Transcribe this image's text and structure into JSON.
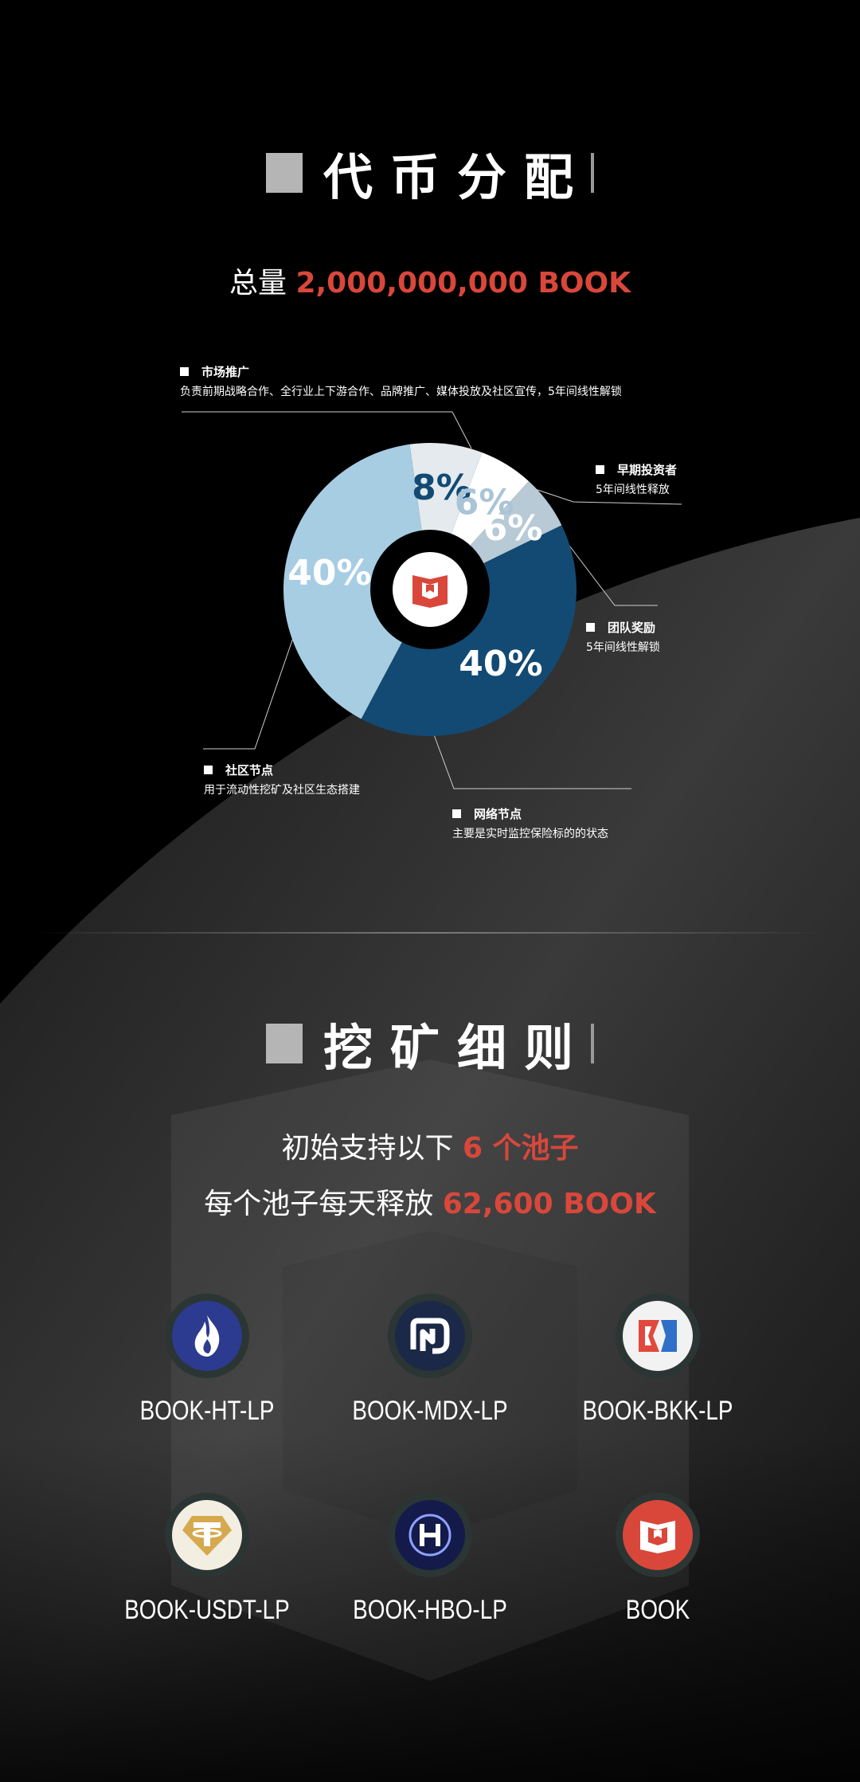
{
  "section1": {
    "title": "代币分配"
  },
  "total": {
    "prefix": "总量",
    "amount": "2,000,000,000 BOOK"
  },
  "chart_data": {
    "type": "pie",
    "slices": [
      {
        "label": "市场推广",
        "value": 8,
        "display": "8%",
        "color": "#e4eaed",
        "text_color": "#124a73"
      },
      {
        "label": "早期投资者",
        "value": 6,
        "display": "6%",
        "color": "#ffffff",
        "text_color": "#a9c4d6"
      },
      {
        "label": "团队奖励",
        "value": 6,
        "display": "6%",
        "color": "#b7cad5",
        "text_color": "#ffffff"
      },
      {
        "label": "网络节点",
        "value": 40,
        "display": "40%",
        "color": "#124a73",
        "text_color": "#ffffff"
      },
      {
        "label": "社区节点",
        "value": 40,
        "display": "40%",
        "color": "#a7cde3",
        "text_color": "#ffffff"
      }
    ]
  },
  "legend": {
    "market": {
      "title": "市场推广",
      "desc": "负责前期战略合作、全行业上下游合作、品牌推广、媒体投放及社区宣传，5年间线性解锁"
    },
    "early": {
      "title": "早期投资者",
      "desc": "5年间线性释放"
    },
    "team": {
      "title": "团队奖励",
      "desc": "5年间线性解锁"
    },
    "community": {
      "title": "社区节点",
      "desc": "用于流动性挖矿及社区生态搭建"
    },
    "network": {
      "title": "网络节点",
      "desc": "主要是实时监控保险标的的状态"
    }
  },
  "section2": {
    "title": "挖矿细则"
  },
  "mining": {
    "line1_prefix": "初始支持以下",
    "line1_highlight": "6 个池子",
    "line2_prefix": "每个池子每天释放",
    "line2_highlight": "62,600 BOOK"
  },
  "pools": [
    {
      "label": "BOOK-HT-LP",
      "icon": "ht-flame-icon",
      "color": "#2c3b8f"
    },
    {
      "label": "BOOK-MDX-LP",
      "icon": "mdx-logo-icon",
      "color": "#1b2848"
    },
    {
      "label": "BOOK-BKK-LP",
      "icon": "bkk-logo-icon",
      "color": "#f2f2f2"
    },
    {
      "label": "BOOK-USDT-LP",
      "icon": "tether-icon",
      "color": "#f3eee2"
    },
    {
      "label": "BOOK-HBO-LP",
      "icon": "hbo-logo-icon",
      "color": "#141a4a"
    },
    {
      "label": "BOOK",
      "icon": "book-logo-icon",
      "color": "#d9473b"
    }
  ],
  "colors": {
    "accent": "#d9473b"
  }
}
